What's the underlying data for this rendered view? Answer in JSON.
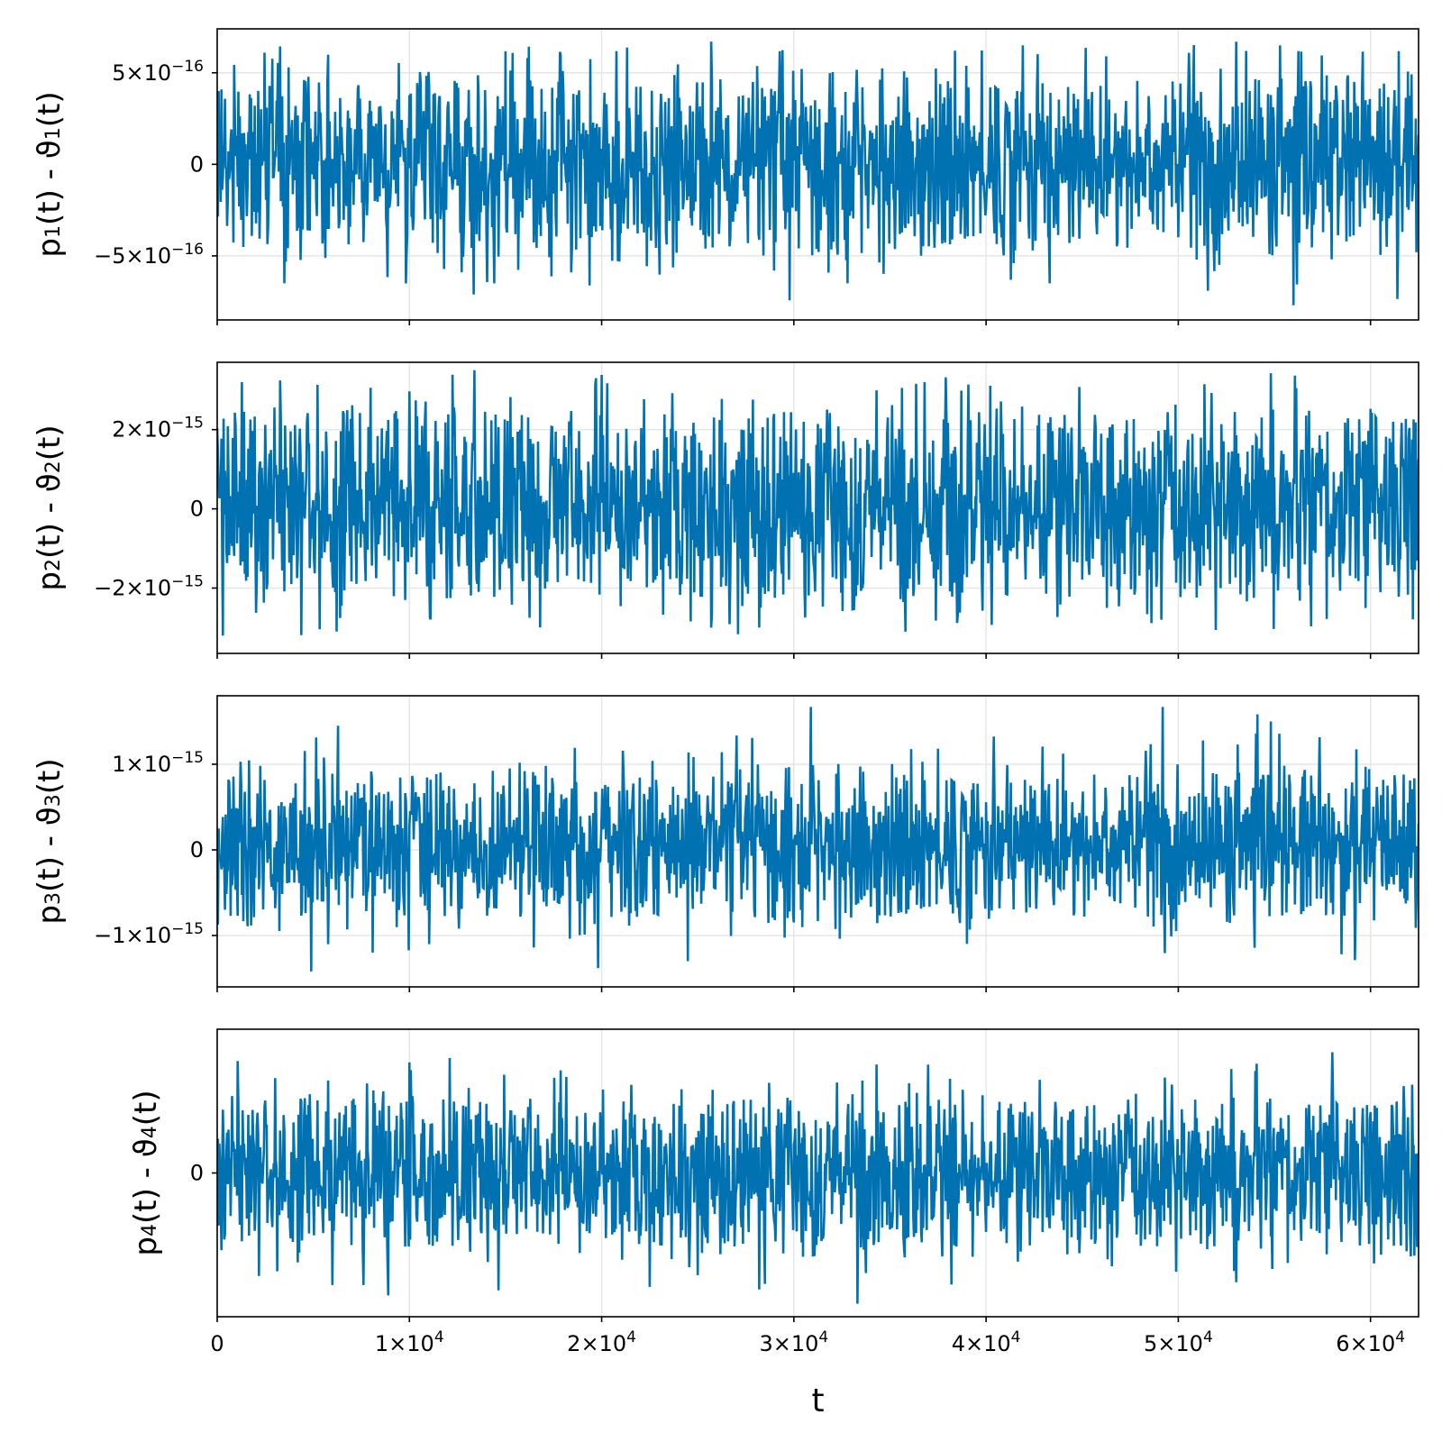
{
  "chart_data": {
    "type": "line",
    "layout": "4 stacked panels, shared x axis",
    "color": "#0072b2",
    "grid": true,
    "xlabel": "t",
    "xlim": [
      0,
      62500
    ],
    "xticks": [
      {
        "value": 0,
        "label": "0"
      },
      {
        "value": 10000,
        "label": "1×10",
        "exp": "4"
      },
      {
        "value": 20000,
        "label": "2×10",
        "exp": "4"
      },
      {
        "value": 30000,
        "label": "3×10",
        "exp": "4"
      },
      {
        "value": 40000,
        "label": "4×10",
        "exp": "4"
      },
      {
        "value": 50000,
        "label": "5×10",
        "exp": "4"
      },
      {
        "value": 60000,
        "label": "6×10",
        "exp": "4"
      }
    ],
    "panels": [
      {
        "ylabel": {
          "main": "p",
          "sub": "1",
          "mid": "(t) - ϑ",
          "sub2": "1",
          "end": "(t)"
        },
        "ylim": [
          -8.5e-16,
          7.4e-16
        ],
        "yticks": [
          {
            "value": 5e-16,
            "label": "5×10",
            "exp": "−16"
          },
          {
            "value": 0,
            "label": "0"
          },
          {
            "value": -5e-16,
            "label": "−5×10",
            "exp": "−16"
          }
        ],
        "typical_band": [
          -3.3e-16,
          3.3e-16
        ],
        "max": 6.7e-16,
        "min": -7.7e-16,
        "peaks": [
          [
            25700,
            6.7e-16
          ],
          [
            41900,
            6.5e-16
          ],
          [
            53000,
            6.7e-16
          ],
          [
            56000,
            -7.7e-16
          ],
          [
            3500,
            -6.5e-16
          ],
          [
            14400,
            -6.5e-16
          ],
          [
            32800,
            -6.5e-16
          ],
          [
            43300,
            -6.5e-16
          ]
        ]
      },
      {
        "ylabel": {
          "main": "p",
          "sub": "2",
          "mid": "(t) - ϑ",
          "sub2": "2",
          "end": "(t)"
        },
        "ylim": [
          -3.65e-15,
          3.7e-15
        ],
        "yticks": [
          {
            "value": 2e-15,
            "label": "2×10",
            "exp": "−15"
          },
          {
            "value": 0,
            "label": "0"
          },
          {
            "value": -2e-15,
            "label": "−2×10",
            "exp": "−15"
          }
        ],
        "typical_band": [
          -1.6e-15,
          1.8e-15
        ],
        "max": 3.5e-15,
        "min": -3.2e-15,
        "peaks": [
          [
            13400,
            3.5e-15
          ],
          [
            1300,
            3.2e-15
          ],
          [
            19700,
            3.3e-15
          ],
          [
            36800,
            3.2e-15
          ],
          [
            300,
            -3.2e-15
          ],
          [
            6200,
            -3.1e-15
          ],
          [
            25700,
            -3e-15
          ],
          [
            28200,
            -3e-15
          ],
          [
            49100,
            -2.8e-15
          ]
        ]
      },
      {
        "ylabel": {
          "main": "p",
          "sub": "3",
          "mid": "(t) - ϑ",
          "sub2": "3",
          "end": "(t)"
        },
        "ylim": [
          -1.6e-15,
          1.8e-15
        ],
        "yticks": [
          {
            "value": 1e-15,
            "label": "1×10",
            "exp": "−15"
          },
          {
            "value": 0,
            "label": "0"
          },
          {
            "value": -1e-15,
            "label": "−1×10",
            "exp": "−15"
          }
        ],
        "typical_band": [
          -5.5e-16,
          6.5e-16
        ],
        "max": 1.67e-15,
        "min": -1.42e-15,
        "peaks": [
          [
            30900,
            1.67e-15
          ],
          [
            49200,
            1.67e-15
          ],
          [
            6300,
            1.45e-15
          ],
          [
            54800,
            1.5e-15
          ],
          [
            4900,
            -1.42e-15
          ],
          [
            19800,
            -1.38e-15
          ],
          [
            24500,
            -1.3e-15
          ],
          [
            8100,
            -1.2e-15
          ]
        ]
      },
      {
        "ylabel": {
          "main": "p",
          "sub": "4",
          "mid": "(t) - ϑ",
          "sub2": "4",
          "end": "(t)"
        },
        "ylim": [
          -1.0,
          1.0
        ],
        "yticks": [
          {
            "value": 0,
            "label": "0"
          }
        ],
        "typical_band": [
          -0.37,
          0.37
        ],
        "max": 0.84,
        "min": -0.91,
        "peaks": [
          [
            58000,
            0.84
          ],
          [
            12100,
            0.8
          ],
          [
            10000,
            0.77
          ],
          [
            33300,
            -0.91
          ],
          [
            28200,
            -0.81
          ],
          [
            6000,
            -0.78
          ],
          [
            53000,
            -0.76
          ],
          [
            7600,
            -0.78
          ]
        ]
      }
    ]
  }
}
